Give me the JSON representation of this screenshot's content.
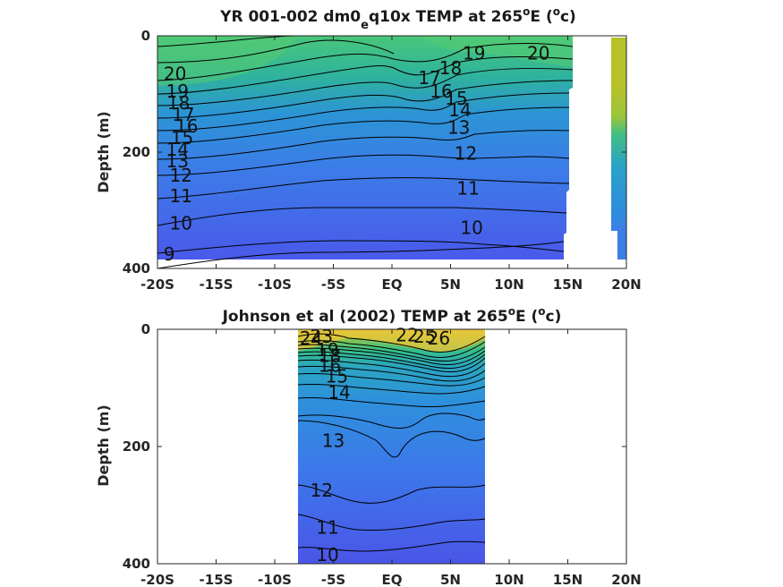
{
  "chart_data": [
    {
      "type": "heatmap",
      "title_main": "YR 001-002 dm0",
      "title_sub": "e",
      "title_after_sub": "q10x TEMP at 265",
      "title_sup": "o",
      "title_end_a": "E (",
      "title_sup2": "o",
      "title_end_b": "c)",
      "ylabel": "Depth (m)",
      "xticks": [
        "-20S",
        "-15S",
        "-10S",
        "-5S",
        "EQ",
        "5N",
        "10N",
        "15N",
        "20N"
      ],
      "xtick_values": [
        -20,
        -15,
        -10,
        -5,
        0,
        5,
        10,
        15,
        20
      ],
      "yticks": [
        "0",
        "200",
        "400"
      ],
      "ytick_values": [
        0,
        200,
        400
      ],
      "xlim": [
        -20,
        20
      ],
      "ylim": [
        400,
        0
      ],
      "data_extent_lat": [
        -20,
        15
      ],
      "contour_levels": [
        9,
        10,
        11,
        12,
        13,
        14,
        15,
        16,
        17,
        18,
        19,
        20
      ],
      "contour_labels": [
        {
          "text": "20",
          "lat": -18.5,
          "depth": 65
        },
        {
          "text": "19",
          "lat": -18.3,
          "depth": 95
        },
        {
          "text": "18",
          "lat": -18.2,
          "depth": 115
        },
        {
          "text": "17",
          "lat": -17.8,
          "depth": 135
        },
        {
          "text": "16",
          "lat": -17.5,
          "depth": 155
        },
        {
          "text": "15",
          "lat": -17.9,
          "depth": 175
        },
        {
          "text": "14",
          "lat": -18.3,
          "depth": 195
        },
        {
          "text": "13",
          "lat": -18.3,
          "depth": 215
        },
        {
          "text": "12",
          "lat": -18.0,
          "depth": 240
        },
        {
          "text": "11",
          "lat": -18.0,
          "depth": 275
        },
        {
          "text": "10",
          "lat": -18.0,
          "depth": 322
        },
        {
          "text": "9",
          "lat": -19.0,
          "depth": 375
        },
        {
          "text": "19",
          "lat": 7.0,
          "depth": 30
        },
        {
          "text": "20",
          "lat": 12.5,
          "depth": 30
        },
        {
          "text": "18",
          "lat": 5.0,
          "depth": 55
        },
        {
          "text": "17",
          "lat": 3.2,
          "depth": 72
        },
        {
          "text": "16",
          "lat": 4.2,
          "depth": 95
        },
        {
          "text": "15",
          "lat": 5.5,
          "depth": 108
        },
        {
          "text": "14",
          "lat": 5.8,
          "depth": 128
        },
        {
          "text": "13",
          "lat": 5.7,
          "depth": 158
        },
        {
          "text": "12",
          "lat": 6.3,
          "depth": 202
        },
        {
          "text": "11",
          "lat": 6.5,
          "depth": 262
        },
        {
          "text": "10",
          "lat": 6.8,
          "depth": 330
        }
      ]
    },
    {
      "type": "heatmap",
      "title_main": "Johnson et al (2002) TEMP at 265",
      "title_sup": "o",
      "title_end_a": "E (",
      "title_sup2": "o",
      "title_end_b": "c)",
      "ylabel": "Depth (m)",
      "xticks": [
        "-20S",
        "-15S",
        "-10S",
        "-5S",
        "EQ",
        "5N",
        "10N",
        "15N",
        "20N"
      ],
      "xtick_values": [
        -20,
        -15,
        -10,
        -5,
        0,
        5,
        10,
        15,
        20
      ],
      "yticks": [
        "0",
        "200",
        "400"
      ],
      "ytick_values": [
        0,
        200,
        400
      ],
      "xlim": [
        -20,
        20
      ],
      "ylim": [
        400,
        0
      ],
      "data_extent_lat": [
        -8,
        8
      ],
      "contour_levels": [
        10,
        11,
        12,
        13,
        14,
        15,
        16,
        17,
        18,
        19,
        20,
        21,
        22,
        23,
        24,
        25,
        26,
        27
      ],
      "contour_labels": [
        {
          "text": "24",
          "lat": -6.9,
          "depth": 15
        },
        {
          "text": "23",
          "lat": -6.0,
          "depth": 12
        },
        {
          "text": "22",
          "lat": 1.3,
          "depth": 10
        },
        {
          "text": "25",
          "lat": 2.8,
          "depth": 12
        },
        {
          "text": "26",
          "lat": 4.0,
          "depth": 15
        },
        {
          "text": "19",
          "lat": -5.5,
          "depth": 35
        },
        {
          "text": "18",
          "lat": -5.3,
          "depth": 45
        },
        {
          "text": "16",
          "lat": -5.3,
          "depth": 62
        },
        {
          "text": "15",
          "lat": -4.7,
          "depth": 80
        },
        {
          "text": "14",
          "lat": -4.5,
          "depth": 108
        },
        {
          "text": "13",
          "lat": -5.0,
          "depth": 190
        },
        {
          "text": "12",
          "lat": -6.0,
          "depth": 275
        },
        {
          "text": "11",
          "lat": -5.5,
          "depth": 338
        },
        {
          "text": "10",
          "lat": -5.5,
          "depth": 385
        }
      ]
    }
  ]
}
